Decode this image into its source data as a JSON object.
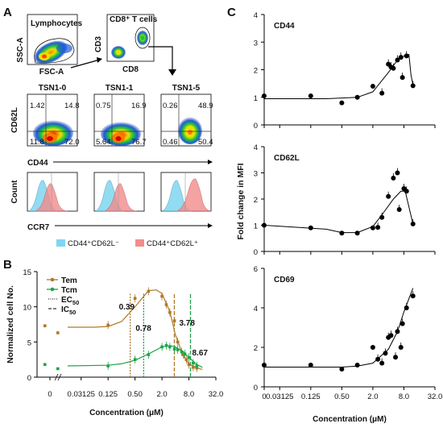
{
  "panel_a": {
    "label": "A",
    "gating": {
      "plot1_title": "Lymphocytes",
      "plot1_y": "SSC-A",
      "plot1_x": "FSC-A",
      "plot2_title": "CD8⁺ T cells",
      "plot2_y": "CD3",
      "plot2_x": "CD8"
    },
    "y_label_quadrant": "CD62L",
    "x_label_quadrant": "CD44",
    "y_label_hist": "Count",
    "x_label_hist": "CCR7",
    "conditions": [
      {
        "title": "TSN1-0",
        "ul": "1.42",
        "ur": "14.8",
        "ll": "11.8",
        "lr": "72.0"
      },
      {
        "title": "TSN1-1",
        "ul": "0.75",
        "ur": "16.9",
        "ll": "5.64",
        "lr": "76.7"
      },
      {
        "title": "TSN1-5",
        "ul": "0.26",
        "ur": "48.9",
        "ll": "0.46",
        "lr": "50.4"
      }
    ],
    "legend": {
      "item1": "CD44⁺CD62L⁻",
      "item2": "CD44⁺CD62L⁺",
      "color1": "#7fd6f0",
      "color2": "#f28c8c"
    }
  },
  "panel_b": {
    "label": "B"
  },
  "panel_c": {
    "label": "C"
  },
  "chart_data": [
    {
      "panel": "B",
      "type": "line",
      "ylabel": "Normalized cell No.",
      "xlabel": "Concentration (μM)",
      "x_scale": "log2",
      "x_zero_label": "0",
      "x_ticks": [
        0.03125,
        0.125,
        0.5,
        2.0,
        8.0,
        32.0
      ],
      "x_tick_labels": [
        "0.03125",
        "0.125",
        "0.50",
        "2.0",
        "8.0",
        "32.0"
      ],
      "ylim": [
        0,
        15
      ],
      "y_ticks": [
        0,
        5,
        10,
        15
      ],
      "legend_labels": {
        "ec50": "EC50",
        "ic50": "IC50"
      },
      "annotations": [
        "0.39",
        "0.78",
        "3.78",
        "8.67"
      ],
      "ec50": {
        "Tem": 0.39,
        "Tcm": 0.78
      },
      "ic50": {
        "Tem": 3.78,
        "Tcm": 8.67
      },
      "series": [
        {
          "name": "Tem",
          "color": "#b0782a",
          "zero_points": [
            7.3,
            6.3
          ],
          "points": [
            [
              0.125,
              7.4
            ],
            [
              0.5,
              11.2
            ],
            [
              1.0,
              12.2
            ],
            [
              2.0,
              11.5
            ],
            [
              2.5,
              10.3
            ],
            [
              3.0,
              9.2
            ],
            [
              3.8,
              8.0
            ],
            [
              4.5,
              5.0
            ],
            [
              6.0,
              3.2
            ],
            [
              7.0,
              2.5
            ],
            [
              8.0,
              1.8
            ],
            [
              10.0,
              1.4
            ],
            [
              12.0,
              1.3
            ]
          ],
          "fit": [
            [
              0.0156,
              7.1
            ],
            [
              0.0625,
              7.1
            ],
            [
              0.125,
              7.2
            ],
            [
              0.25,
              7.9
            ],
            [
              0.5,
              10.0
            ],
            [
              1.0,
              12.3
            ],
            [
              1.5,
              12.4
            ],
            [
              2.0,
              11.9
            ],
            [
              3.0,
              9.3
            ],
            [
              4.0,
              6.0
            ],
            [
              6.0,
              3.0
            ],
            [
              8.0,
              1.9
            ],
            [
              12.0,
              1.3
            ],
            [
              16.0,
              1.1
            ]
          ]
        },
        {
          "name": "Tcm",
          "color": "#1fa34a",
          "zero_points": [
            1.8,
            1.2
          ],
          "points": [
            [
              0.125,
              1.6
            ],
            [
              0.5,
              2.5
            ],
            [
              1.0,
              3.2
            ],
            [
              2.0,
              4.3
            ],
            [
              2.5,
              4.5
            ],
            [
              3.0,
              4.3
            ],
            [
              3.8,
              4.0
            ],
            [
              4.5,
              3.9
            ],
            [
              5.5,
              3.6
            ],
            [
              6.5,
              3.3
            ],
            [
              8.0,
              2.8
            ],
            [
              10.0,
              2.0
            ],
            [
              12.0,
              1.6
            ]
          ],
          "fit": [
            [
              0.0156,
              1.6
            ],
            [
              0.125,
              1.7
            ],
            [
              0.25,
              1.9
            ],
            [
              0.5,
              2.4
            ],
            [
              1.0,
              3.3
            ],
            [
              2.0,
              4.3
            ],
            [
              3.0,
              4.5
            ],
            [
              4.0,
              4.3
            ],
            [
              6.0,
              3.6
            ],
            [
              8.0,
              2.8
            ],
            [
              12.0,
              1.8
            ],
            [
              16.0,
              1.4
            ]
          ]
        }
      ]
    },
    {
      "panel": "C",
      "type": "scatter",
      "title": "CD44",
      "ylabel": "Fold change in MFI",
      "xlabel": "Concentration (μM)",
      "x_scale": "log2",
      "x_ticks": [
        0.03125,
        0.125,
        0.5,
        2.0,
        8.0,
        32.0
      ],
      "x_tick_labels": [
        "0.03125",
        "0.125",
        "0.50",
        "2.0",
        "8.0",
        "32.0"
      ],
      "ylim": [
        0,
        4
      ],
      "y_ticks": [
        0,
        1,
        2,
        3,
        4
      ],
      "points": [
        [
          0.0156,
          1.05
        ],
        [
          0.125,
          1.05
        ],
        [
          0.5,
          0.8
        ],
        [
          1.0,
          1.0
        ],
        [
          2.0,
          1.4
        ],
        [
          3.0,
          1.15
        ],
        [
          4.0,
          2.2
        ],
        [
          4.5,
          2.1
        ],
        [
          5.0,
          2.05
        ],
        [
          6.0,
          2.35
        ],
        [
          7.0,
          2.45
        ],
        [
          7.5,
          1.72
        ],
        [
          9.0,
          2.5
        ],
        [
          12.0,
          1.42
        ]
      ],
      "fit": [
        [
          0.0156,
          0.95
        ],
        [
          0.25,
          0.95
        ],
        [
          1.0,
          1.0
        ],
        [
          2.0,
          1.2
        ],
        [
          4.0,
          1.9
        ],
        [
          6.0,
          2.35
        ],
        [
          8.0,
          2.5
        ],
        [
          10.0,
          2.55
        ],
        [
          11.0,
          1.8
        ],
        [
          12.0,
          1.45
        ]
      ]
    },
    {
      "panel": "C",
      "type": "scatter",
      "title": "CD62L",
      "ylim": [
        0,
        4
      ],
      "y_ticks": [
        0,
        1,
        2,
        3,
        4
      ],
      "x_ticks": [
        0.03125,
        0.125,
        0.5,
        2.0,
        8.0,
        32.0
      ],
      "x_tick_labels": [
        "0.03125",
        "0.125",
        "0.50",
        "2.0",
        "8.0",
        "32.0"
      ],
      "points": [
        [
          0.0156,
          1.0
        ],
        [
          0.125,
          0.9
        ],
        [
          0.5,
          0.7
        ],
        [
          1.0,
          0.7
        ],
        [
          2.0,
          0.9
        ],
        [
          2.5,
          0.92
        ],
        [
          3.0,
          1.3
        ],
        [
          4.0,
          2.1
        ],
        [
          5.0,
          2.8
        ],
        [
          6.0,
          3.0
        ],
        [
          6.5,
          1.6
        ],
        [
          8.0,
          2.4
        ],
        [
          9.0,
          2.3
        ],
        [
          12.0,
          1.05
        ]
      ],
      "fit": [
        [
          0.0156,
          1.0
        ],
        [
          0.25,
          0.85
        ],
        [
          0.5,
          0.72
        ],
        [
          1.0,
          0.72
        ],
        [
          2.0,
          0.95
        ],
        [
          3.0,
          1.4
        ],
        [
          5.0,
          2.0
        ],
        [
          7.0,
          2.3
        ],
        [
          8.5,
          2.3
        ],
        [
          10.0,
          1.7
        ],
        [
          12.0,
          1.05
        ]
      ]
    },
    {
      "panel": "C",
      "type": "scatter",
      "title": "CD69",
      "ylim": [
        0,
        6
      ],
      "y_ticks": [
        0,
        2,
        4,
        6
      ],
      "x_ticks": [
        0.03125,
        0.125,
        0.5,
        2.0,
        8.0,
        32.0
      ],
      "x_tick_labels": [
        "0.03125",
        "0.125",
        "0.50",
        "2.0",
        "8.0",
        "32.0"
      ],
      "points": [
        [
          0.0156,
          1.1
        ],
        [
          0.125,
          1.1
        ],
        [
          0.5,
          0.9
        ],
        [
          1.0,
          1.1
        ],
        [
          2.0,
          2.0
        ],
        [
          2.5,
          1.4
        ],
        [
          3.0,
          1.2
        ],
        [
          3.5,
          1.7
        ],
        [
          4.0,
          2.5
        ],
        [
          4.5,
          2.6
        ],
        [
          5.5,
          1.5
        ],
        [
          6.0,
          2.8
        ],
        [
          7.0,
          2.0
        ],
        [
          7.5,
          3.2
        ],
        [
          9.0,
          4.0
        ],
        [
          12.0,
          4.6
        ]
      ],
      "fit": [
        [
          0.0156,
          1.0
        ],
        [
          0.5,
          1.0
        ],
        [
          1.0,
          1.05
        ],
        [
          2.0,
          1.2
        ],
        [
          4.0,
          1.9
        ],
        [
          6.0,
          2.8
        ],
        [
          8.0,
          3.8
        ],
        [
          12.0,
          5.0
        ]
      ]
    }
  ]
}
